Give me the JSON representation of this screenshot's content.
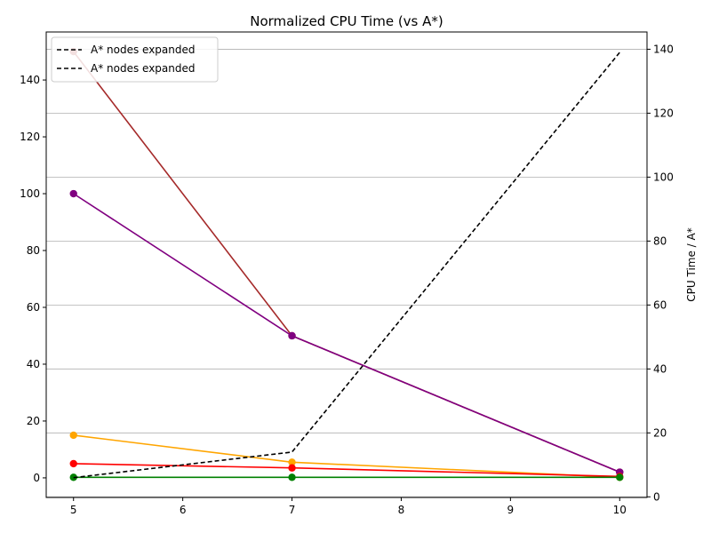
{
  "chart_data": {
    "type": "line",
    "title": "Normalized CPU Time (vs A*)",
    "xlabel": "",
    "ylabel_left": "",
    "ylabel_right": "CPU Time / A*",
    "x": [
      5,
      7,
      10
    ],
    "x_ticks": [
      5,
      6,
      7,
      8,
      9,
      10
    ],
    "xlim": [
      4.75,
      10.25
    ],
    "ylim_left": [
      -6.9,
      156.9
    ],
    "y_ticks_left": [
      0,
      20,
      40,
      60,
      80,
      100,
      120,
      140
    ],
    "ylim_right": [
      -0.2,
      145.4
    ],
    "y_ticks_right": [
      0,
      20,
      40,
      60,
      80,
      100,
      120,
      140
    ],
    "grid": "horizontal (right axis)",
    "legend_position": "top-left",
    "series": [
      {
        "axis": "left",
        "values": [
          150,
          50,
          2
        ],
        "color": "#a52a2a",
        "marker": "circle",
        "style": "solid"
      },
      {
        "axis": "left",
        "values": [
          100,
          50,
          2
        ],
        "color": "#800080",
        "marker": "circle",
        "style": "solid"
      },
      {
        "axis": "left",
        "values": [
          15,
          5.5,
          0.2
        ],
        "color": "#ffa500",
        "marker": "circle",
        "style": "solid"
      },
      {
        "axis": "left",
        "values": [
          5,
          3.5,
          0.5
        ],
        "color": "#ff0000",
        "marker": "circle",
        "style": "solid"
      },
      {
        "axis": "left",
        "values": [
          0.2,
          0.2,
          0.2
        ],
        "color": "#008000",
        "marker": "circle",
        "style": "solid"
      },
      {
        "name": "A* nodes expanded",
        "axis": "right",
        "values": [
          6,
          14,
          139
        ],
        "color": "#000000",
        "marker": "none",
        "style": "dashed"
      }
    ],
    "legend": [
      "A* nodes expanded",
      "A* nodes expanded"
    ]
  }
}
